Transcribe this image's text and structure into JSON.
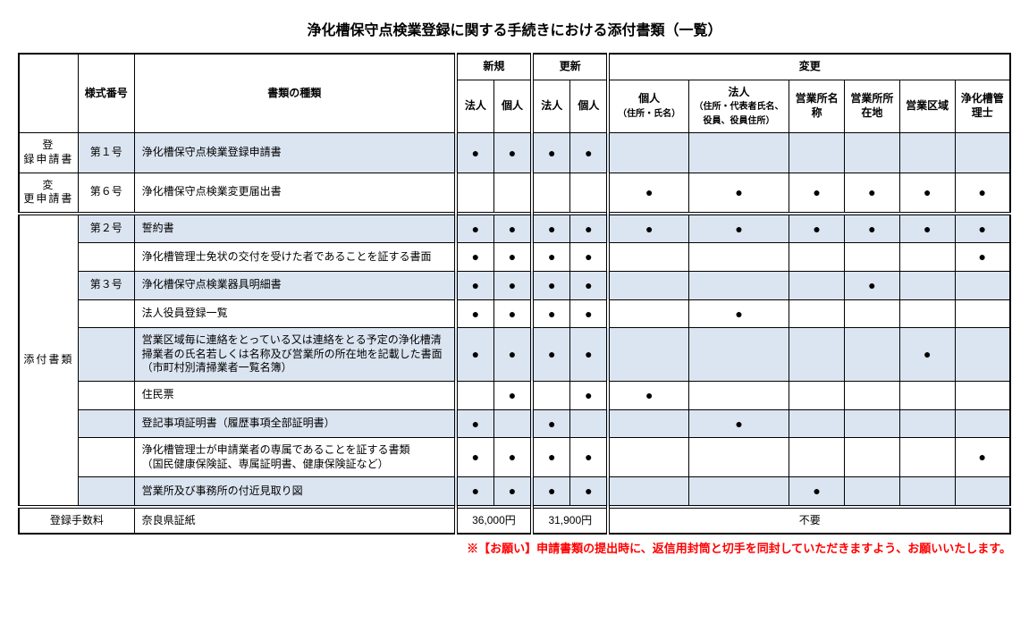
{
  "title": "浄化槽保守点検業登録に関する手続きにおける添付書類（一覧）",
  "headers": {
    "form_no": "様式番号",
    "doc_type": "書類の種類",
    "shinki": "新規",
    "koushin": "更新",
    "henkou": "変更",
    "hojin": "法人",
    "kojin": "個人",
    "kojin_addr": "個人",
    "kojin_addr_sub": "（住所・氏名）",
    "hojin_addr": "法人",
    "hojin_addr_sub": "（住所・代表者氏名、役員、役員住所）",
    "office_name": "営業所名称",
    "office_loc": "営業所所在地",
    "area": "営業区域",
    "manager": "浄化槽管理士"
  },
  "row_categories": {
    "reg_app": "登　録申請書",
    "change_app": "変　更申請書",
    "attached": "添付書類",
    "fee": "登録手数料"
  },
  "rows": [
    {
      "cat": "reg",
      "form": "第１号",
      "doc": "浄化槽保守点検業登録申請書",
      "shaded": true,
      "c": [
        "●",
        "●",
        "●",
        "●",
        "",
        "",
        "",
        "",
        "",
        ""
      ]
    },
    {
      "cat": "chg",
      "form": "第６号",
      "doc": "浄化槽保守点検業変更届出書",
      "shaded": false,
      "c": [
        "",
        "",
        "",
        "",
        "●",
        "●",
        "●",
        "●",
        "●",
        "●"
      ]
    },
    {
      "cat": "att",
      "form": "第２号",
      "doc": "誓約書",
      "shaded": true,
      "c": [
        "●",
        "●",
        "●",
        "●",
        "●",
        "●",
        "●",
        "●",
        "●",
        "●"
      ]
    },
    {
      "cat": "att",
      "form": "",
      "doc": "浄化槽管理士免状の交付を受けた者であることを証する書面",
      "shaded": false,
      "c": [
        "●",
        "●",
        "●",
        "●",
        "",
        "",
        "",
        "",
        "",
        "●"
      ]
    },
    {
      "cat": "att",
      "form": "第３号",
      "doc": "浄化槽保守点検業器具明細書",
      "shaded": true,
      "c": [
        "●",
        "●",
        "●",
        "●",
        "",
        "",
        "",
        "●",
        "",
        ""
      ]
    },
    {
      "cat": "att",
      "form": "",
      "doc": "法人役員登録一覧",
      "shaded": false,
      "c": [
        "●",
        "●",
        "●",
        "●",
        "",
        "●",
        "",
        "",
        "",
        ""
      ]
    },
    {
      "cat": "att",
      "form": "",
      "doc": "営業区域毎に連絡をとっている又は連絡をとる予定の浄化槽清掃業者の氏名若しくは名称及び営業所の所在地を記載した書面（市町村別清掃業者一覧名簿）",
      "shaded": true,
      "c": [
        "●",
        "●",
        "●",
        "●",
        "",
        "",
        "",
        "",
        "●",
        ""
      ]
    },
    {
      "cat": "att",
      "form": "",
      "doc": "住民票",
      "shaded": false,
      "c": [
        "",
        "●",
        "",
        "●",
        "●",
        "",
        "",
        "",
        "",
        ""
      ]
    },
    {
      "cat": "att",
      "form": "",
      "doc": "登記事項証明書（履歴事項全部証明書）",
      "shaded": true,
      "c": [
        "●",
        "",
        "●",
        "",
        "",
        "●",
        "",
        "",
        "",
        ""
      ]
    },
    {
      "cat": "att",
      "form": "",
      "doc": "浄化槽管理士が申請業者の専属であることを証する書類\n（国民健康保険証、専属証明書、健康保険証など）",
      "shaded": false,
      "c": [
        "●",
        "●",
        "●",
        "●",
        "",
        "",
        "",
        "",
        "",
        "●"
      ]
    },
    {
      "cat": "att",
      "form": "",
      "doc": "営業所及び事務所の付近見取り図",
      "shaded": true,
      "c": [
        "●",
        "●",
        "●",
        "●",
        "",
        "",
        "●",
        "",
        "",
        ""
      ]
    }
  ],
  "fee": {
    "doc": "奈良県証紙",
    "shinki_price": "36,000円",
    "koushin_price": "31,900円",
    "henkou_price": "不要"
  },
  "note": "※【お願い】申請書類の提出時に、返信用封筒と切手を同封していただきますよう、お願いいたします。"
}
